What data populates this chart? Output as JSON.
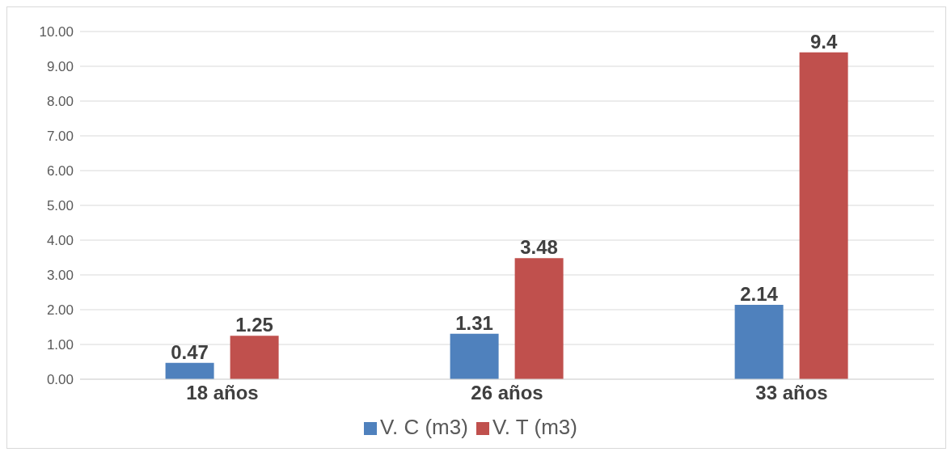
{
  "chart_data": {
    "type": "bar",
    "categories": [
      "18 años",
      "26 años",
      "33 años"
    ],
    "series": [
      {
        "name": "V. C (m3)",
        "color": "#4f81bd",
        "values": [
          0.47,
          1.31,
          2.14
        ]
      },
      {
        "name": "V. T (m3)",
        "color": "#c0504d",
        "values": [
          1.25,
          3.48,
          9.4
        ]
      }
    ],
    "ylim": [
      0,
      10
    ],
    "yticks": [
      {
        "value": 0,
        "label": "0.00"
      },
      {
        "value": 1,
        "label": "1.00"
      },
      {
        "value": 2,
        "label": "2.00"
      },
      {
        "value": 3,
        "label": "3.00"
      },
      {
        "value": 4,
        "label": "4.00"
      },
      {
        "value": 5,
        "label": "5.00"
      },
      {
        "value": 6,
        "label": "6.00"
      },
      {
        "value": 7,
        "label": "7.00"
      },
      {
        "value": 8,
        "label": "8.00"
      },
      {
        "value": 9,
        "label": "9.00"
      },
      {
        "value": 10,
        "label": "10.00"
      }
    ],
    "grid": "y",
    "legend": "bottom",
    "data_labels": true
  }
}
